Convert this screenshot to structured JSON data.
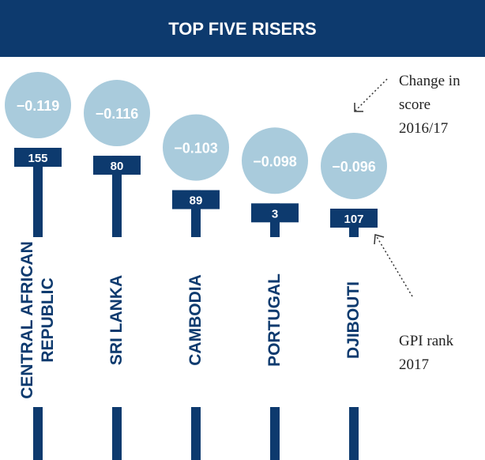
{
  "chart_data": {
    "type": "lollipop",
    "title": "TOP FIVE RISERS",
    "categories": [
      "CENTRAL AFRICAN REPUBLIC",
      "SRI LANKA",
      "CAMBODIA",
      "PORTUGAL",
      "DJIBOUTI"
    ],
    "values": [
      -0.119,
      -0.116,
      -0.103,
      -0.098,
      -0.096
    ],
    "value_labels": [
      "−0.119",
      "−0.116",
      "−0.103",
      "−0.098",
      "−0.096"
    ],
    "ranks": [
      155,
      80,
      89,
      3,
      107
    ],
    "annotations": [
      "Change in score 2016/17",
      "GPI rank 2017"
    ],
    "color": "#a9cbdc",
    "bar_color": "#0d3a6e"
  }
}
